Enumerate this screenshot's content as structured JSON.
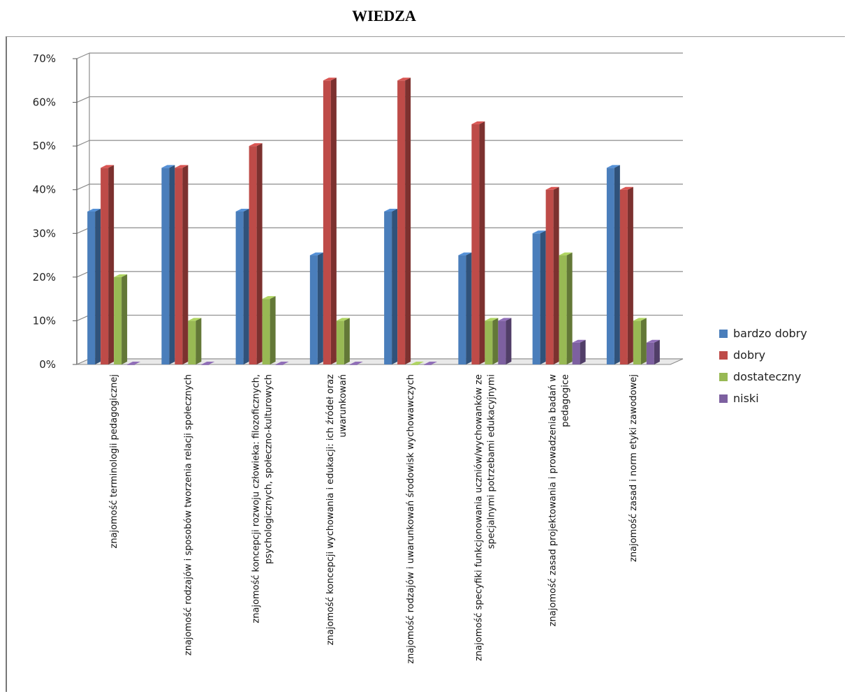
{
  "chart_data": {
    "type": "bar",
    "title": "WIEDZA",
    "xlabel": "",
    "ylabel": "",
    "ylim": [
      0,
      70
    ],
    "yticks": [
      "0%",
      "10%",
      "20%",
      "30%",
      "40%",
      "50%",
      "60%",
      "70%"
    ],
    "grid": true,
    "legend_position": "right",
    "categories": [
      [
        "znajomość terminologii pedagogicznej"
      ],
      [
        "znajomość rodzajów i sposobów tworzenia relacji społecznych"
      ],
      [
        "znajomość koncepcji rozwoju człowieka: filozoficznych,",
        "psychologicznych, społeczno-kulturowych"
      ],
      [
        "znajomość koncepcji wychowania i edukacji: ich źródeł oraz",
        "uwarunkowań"
      ],
      [
        "znajomość rodzajów i uwarunkowań środowisk wychowawczych"
      ],
      [
        "znajomość specyfiki funkcjonowania uczniów/wychowanków ze",
        "specjalnymi potrzebami edukacyjnymi"
      ],
      [
        "znajomość zasad projektowania i prowadzenia badań w",
        "pedagogice"
      ],
      [
        "znajomość zasad i norm etyki zawodowej"
      ]
    ],
    "series": [
      {
        "name": "bardzo dobry",
        "color": "#4a7ebb",
        "values": [
          35,
          45,
          35,
          25,
          35,
          25,
          30,
          45
        ]
      },
      {
        "name": "dobry",
        "color": "#be4b48",
        "values": [
          45,
          45,
          50,
          65,
          65,
          55,
          40,
          40
        ]
      },
      {
        "name": "dostateczny",
        "color": "#98b954",
        "values": [
          20,
          10,
          15,
          10,
          0,
          10,
          25,
          10
        ]
      },
      {
        "name": "niski",
        "color": "#7d60a0",
        "values": [
          0,
          0,
          0,
          0,
          0,
          10,
          5,
          5
        ]
      }
    ]
  }
}
